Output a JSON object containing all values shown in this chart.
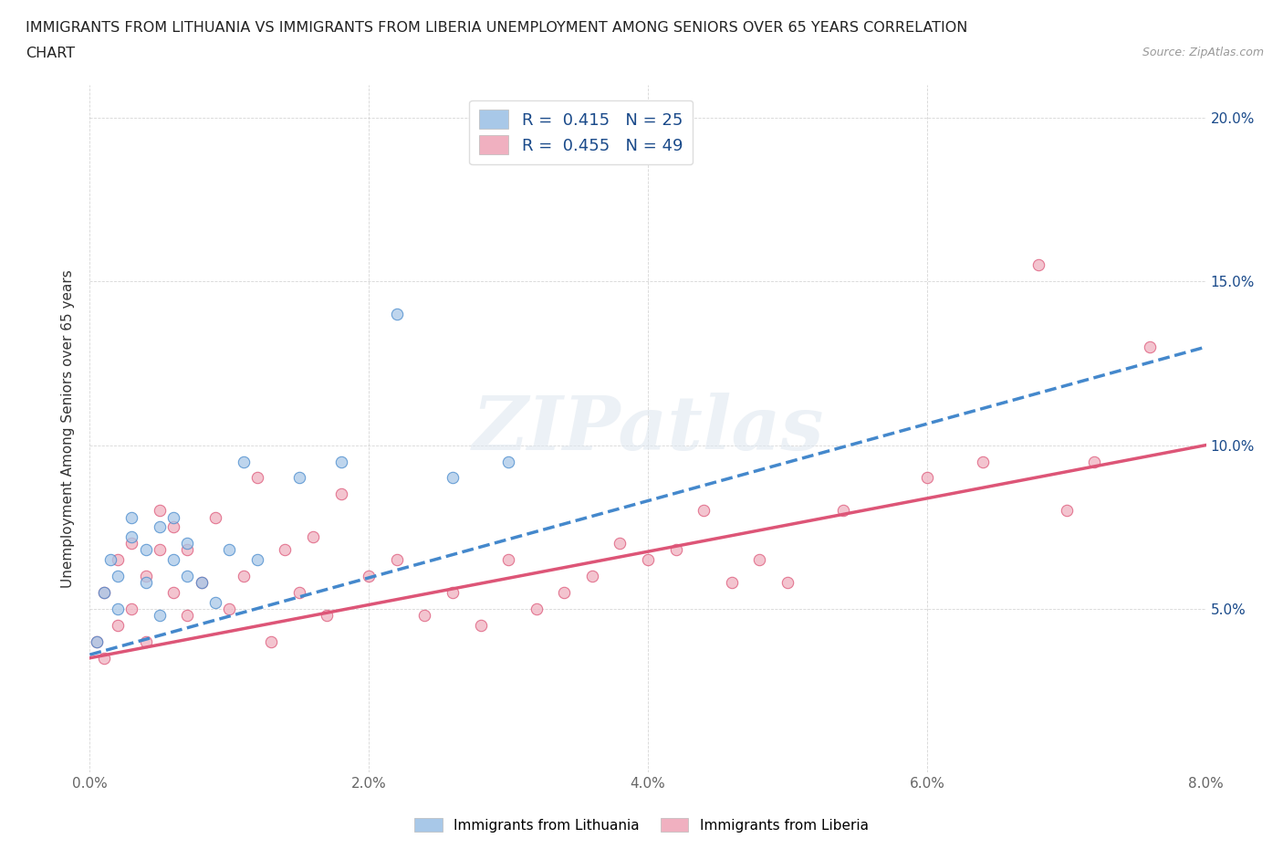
{
  "title_line1": "IMMIGRANTS FROM LITHUANIA VS IMMIGRANTS FROM LIBERIA UNEMPLOYMENT AMONG SENIORS OVER 65 YEARS CORRELATION",
  "title_line2": "CHART",
  "source": "Source: ZipAtlas.com",
  "ylabel": "Unemployment Among Seniors over 65 years",
  "xlim": [
    0.0,
    0.08
  ],
  "ylim": [
    0.0,
    0.21
  ],
  "xticks": [
    0.0,
    0.02,
    0.04,
    0.06,
    0.08
  ],
  "xticklabels": [
    "0.0%",
    "2.0%",
    "4.0%",
    "6.0%",
    "8.0%"
  ],
  "yticks": [
    0.0,
    0.05,
    0.1,
    0.15,
    0.2
  ],
  "yticklabels": [
    "",
    "5.0%",
    "10.0%",
    "15.0%",
    "20.0%"
  ],
  "legend_color_text": "#1a4a8a",
  "color_lithuania": "#a8c8e8",
  "color_liberia": "#f0b0c0",
  "color_line_lithuania": "#4488cc",
  "color_line_liberia": "#dd5577",
  "watermark_text": "ZIPatlas",
  "R_lithuania": 0.415,
  "N_lithuania": 25,
  "R_liberia": 0.455,
  "N_liberia": 49,
  "lithuania_x": [
    0.0005,
    0.001,
    0.0015,
    0.002,
    0.002,
    0.003,
    0.003,
    0.004,
    0.004,
    0.005,
    0.005,
    0.006,
    0.006,
    0.007,
    0.007,
    0.008,
    0.009,
    0.01,
    0.011,
    0.012,
    0.015,
    0.018,
    0.022,
    0.026,
    0.03
  ],
  "lithuania_y": [
    0.04,
    0.055,
    0.065,
    0.05,
    0.06,
    0.072,
    0.078,
    0.068,
    0.058,
    0.075,
    0.048,
    0.065,
    0.078,
    0.07,
    0.06,
    0.058,
    0.052,
    0.068,
    0.095,
    0.065,
    0.09,
    0.095,
    0.14,
    0.09,
    0.095
  ],
  "liberia_x": [
    0.0005,
    0.001,
    0.001,
    0.002,
    0.002,
    0.003,
    0.003,
    0.004,
    0.004,
    0.005,
    0.005,
    0.006,
    0.006,
    0.007,
    0.007,
    0.008,
    0.009,
    0.01,
    0.011,
    0.012,
    0.013,
    0.014,
    0.015,
    0.016,
    0.017,
    0.018,
    0.02,
    0.022,
    0.024,
    0.026,
    0.028,
    0.03,
    0.032,
    0.034,
    0.036,
    0.038,
    0.04,
    0.042,
    0.044,
    0.046,
    0.048,
    0.05,
    0.054,
    0.06,
    0.064,
    0.068,
    0.07,
    0.072,
    0.076
  ],
  "liberia_y": [
    0.04,
    0.055,
    0.035,
    0.065,
    0.045,
    0.05,
    0.07,
    0.04,
    0.06,
    0.068,
    0.08,
    0.055,
    0.075,
    0.048,
    0.068,
    0.058,
    0.078,
    0.05,
    0.06,
    0.09,
    0.04,
    0.068,
    0.055,
    0.072,
    0.048,
    0.085,
    0.06,
    0.065,
    0.048,
    0.055,
    0.045,
    0.065,
    0.05,
    0.055,
    0.06,
    0.07,
    0.065,
    0.068,
    0.08,
    0.058,
    0.065,
    0.058,
    0.08,
    0.09,
    0.095,
    0.155,
    0.08,
    0.095,
    0.13
  ],
  "lith_trend_x": [
    0.0,
    0.08
  ],
  "lith_trend_y": [
    0.036,
    0.13
  ],
  "lib_trend_x": [
    0.0,
    0.08
  ],
  "lib_trend_y": [
    0.035,
    0.1
  ]
}
